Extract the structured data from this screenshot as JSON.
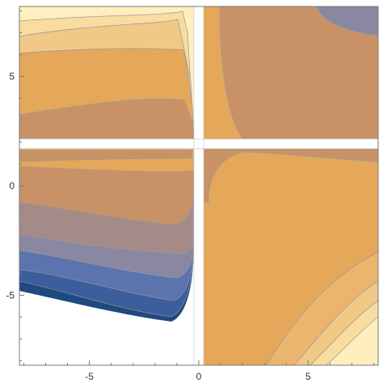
{
  "chart_data": {
    "type": "contour",
    "title": "",
    "xlabel": "",
    "ylabel": "",
    "xlim": [
      -8.2,
      8.2
    ],
    "ylim": [
      -8.2,
      8.2
    ],
    "grid": false,
    "x_ticks": [
      -5,
      0,
      5
    ],
    "y_ticks": [
      -5,
      0,
      5
    ],
    "x_tick_labels": [
      "-5",
      "0",
      "5"
    ],
    "y_tick_labels": [
      "-5",
      "0",
      "5"
    ],
    "singular_lines": {
      "x": 0,
      "y": 2
    },
    "palette": [
      "#FFEFBF",
      "#F9DCA0",
      "#F2C887",
      "#ECB56E",
      "#E5A75A",
      "#C89266",
      "#A48B87",
      "#8A88A0",
      "#5B74AE",
      "#3D5E9C",
      "#1F4A80"
    ],
    "contour_line_color": "#9C9C9C",
    "frame_color": "#7A7A7A"
  }
}
